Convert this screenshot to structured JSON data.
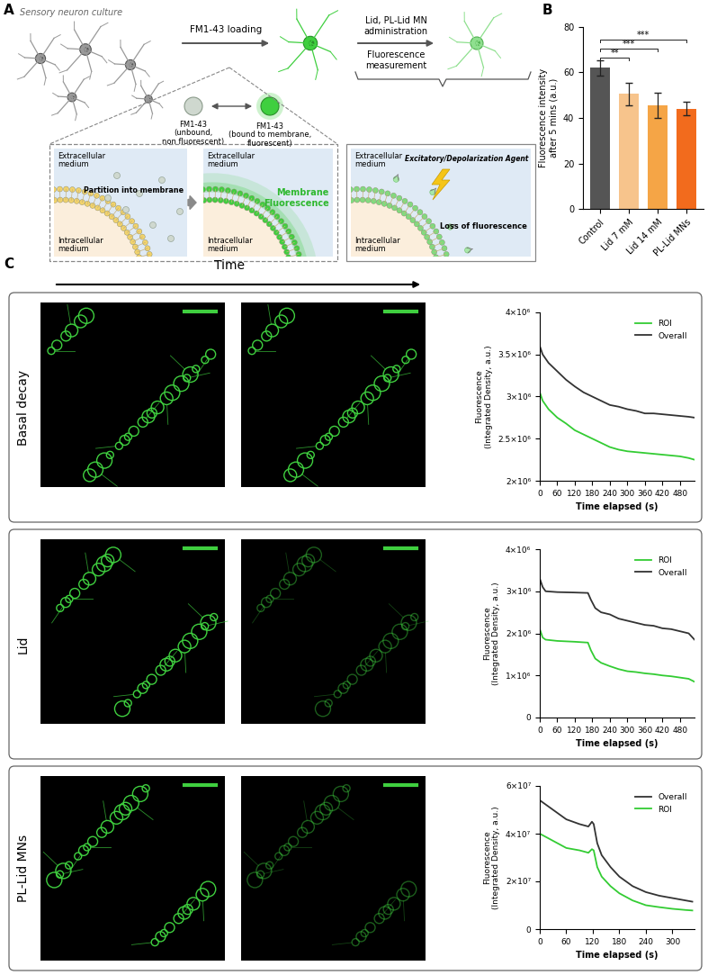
{
  "diagram": {
    "panel_labels": [
      "A",
      "B",
      "C"
    ],
    "panel_a": {
      "culture": "Sensory neuron culture",
      "step1": "FM1-43 loading",
      "step2": "Lid, PL-Lid MN\nadministration",
      "step3": "Fluorescence\nmeasurement",
      "unbound": "FM1-43\n(unbound,\nnon fluorescent)",
      "bound": "FM1-43\n(bound to membrane,\nfluorescent)",
      "extracellular": "Extracellular\nmedium",
      "intracellular": "Intracellular\nmedium",
      "partition": "Partition into membrane",
      "membrane_fluorescence": "Membrane\nFluorescence",
      "agent": "Excitatory/Depolarization Agent",
      "loss": "Loss of fluorescence"
    },
    "panel_c": {
      "time": "Time"
    }
  },
  "chart_data": [
    {
      "type": "bar",
      "ylabel": "Fluorescence intensity\nafter 5 mins (a.u.)",
      "categories": [
        "Control",
        "Lid 7 mM",
        "Lid 14 mM",
        "PL-Lid MNs"
      ],
      "values": [
        62,
        50.5,
        45.5,
        44
      ],
      "errors": [
        3.5,
        5,
        5.5,
        3
      ],
      "colors": [
        "#555555",
        "#f7c48c",
        "#f5a546",
        "#f26b1d"
      ],
      "ylim": [
        0,
        80
      ],
      "yticks": [
        0,
        20,
        40,
        60,
        80
      ],
      "annotations": [
        {
          "from": "Control",
          "to": "Lid 7 mM",
          "text": "**"
        },
        {
          "from": "Control",
          "to": "Lid 14 mM",
          "text": "***"
        },
        {
          "from": "Control",
          "to": "PL-Lid MNs",
          "text": "***"
        }
      ]
    },
    {
      "type": "line",
      "title": "Basal decay",
      "xlabel": "Time elapsed (s)",
      "ylabel": "Fluorescence\n(Integrated Density, a.u.)",
      "xlim": [
        0,
        530
      ],
      "xticks": [
        0,
        60,
        120,
        180,
        240,
        300,
        360,
        420,
        480
      ],
      "ylim": [
        2000000,
        4000000
      ],
      "yticks": [
        {
          "value": 2000000,
          "label": "2×10⁶"
        },
        {
          "value": 2500000,
          "label": "2.5×10⁶"
        },
        {
          "value": 3000000,
          "label": "3×10⁶"
        },
        {
          "value": 3500000,
          "label": "3.5×10⁶"
        },
        {
          "value": 4000000,
          "label": "4×10⁶"
        }
      ],
      "legend": "upper right",
      "x": [
        0,
        10,
        30,
        60,
        90,
        120,
        150,
        180,
        210,
        240,
        270,
        300,
        330,
        360,
        390,
        420,
        450,
        480,
        510,
        530
      ],
      "series": [
        {
          "name": "ROI",
          "color": "#33cc33",
          "values": [
            3050000,
            2950000,
            2850000,
            2750000,
            2680000,
            2600000,
            2550000,
            2500000,
            2450000,
            2400000,
            2370000,
            2350000,
            2340000,
            2330000,
            2320000,
            2310000,
            2300000,
            2290000,
            2270000,
            2250000
          ]
        },
        {
          "name": "Overall",
          "color": "#333333",
          "values": [
            3600000,
            3500000,
            3400000,
            3300000,
            3200000,
            3120000,
            3050000,
            3000000,
            2950000,
            2900000,
            2880000,
            2850000,
            2830000,
            2800000,
            2800000,
            2790000,
            2780000,
            2770000,
            2760000,
            2750000
          ]
        }
      ]
    },
    {
      "type": "line",
      "title": "Lid",
      "xlabel": "Time elapsed (s)",
      "ylabel": "Fluorescence\n(Integrated Density, a.u.)",
      "xlim": [
        0,
        530
      ],
      "xticks": [
        0,
        60,
        120,
        180,
        240,
        300,
        360,
        420,
        480
      ],
      "ylim": [
        0,
        4000000
      ],
      "yticks": [
        0,
        {
          "value": 1000000,
          "label": "1×10⁶"
        },
        {
          "value": 2000000,
          "label": "2×10⁶"
        },
        {
          "value": 3000000,
          "label": "3×10⁶"
        },
        {
          "value": 4000000,
          "label": "4×10⁶"
        }
      ],
      "legend": "upper right",
      "x": [
        0,
        10,
        20,
        60,
        120,
        165,
        175,
        190,
        210,
        240,
        270,
        300,
        330,
        360,
        390,
        420,
        450,
        480,
        510,
        530
      ],
      "series": [
        {
          "name": "ROI",
          "color": "#33cc33",
          "values": [
            2100000,
            1900000,
            1850000,
            1820000,
            1800000,
            1780000,
            1600000,
            1400000,
            1300000,
            1220000,
            1150000,
            1100000,
            1080000,
            1050000,
            1030000,
            1000000,
            980000,
            950000,
            920000,
            850000
          ]
        },
        {
          "name": "Overall",
          "color": "#333333",
          "values": [
            3300000,
            3100000,
            3000000,
            2980000,
            2970000,
            2960000,
            2800000,
            2600000,
            2500000,
            2450000,
            2350000,
            2300000,
            2250000,
            2200000,
            2180000,
            2120000,
            2100000,
            2050000,
            2000000,
            1850000
          ]
        }
      ]
    },
    {
      "type": "line",
      "title": "PL-Lid MNs",
      "xlabel": "Time elapsed (s)",
      "ylabel": "Fluorescence\n(Integrated Density, a.u.)",
      "xlim": [
        0,
        350
      ],
      "xticks": [
        0,
        60,
        120,
        180,
        240,
        300
      ],
      "ylim": [
        0,
        60000000
      ],
      "yticks": [
        0,
        {
          "value": 20000000,
          "label": "2×10⁷"
        },
        {
          "value": 40000000,
          "label": "4×10⁷"
        },
        {
          "value": 60000000,
          "label": "6×10⁷"
        }
      ],
      "legend": "upper right",
      "x": [
        0,
        15,
        30,
        60,
        90,
        110,
        118,
        122,
        130,
        140,
        160,
        180,
        210,
        240,
        270,
        300,
        330,
        345
      ],
      "series": [
        {
          "name": "Overall",
          "color": "#333333",
          "values": [
            54000000,
            52000000,
            50000000,
            46000000,
            44000000,
            43000000,
            45000000,
            44000000,
            36000000,
            31000000,
            26000000,
            22000000,
            18000000,
            15500000,
            14000000,
            13000000,
            12000000,
            11500000
          ]
        },
        {
          "name": "ROI",
          "color": "#33cc33",
          "values": [
            40000000,
            38500000,
            37000000,
            34000000,
            33000000,
            32000000,
            33500000,
            33000000,
            26000000,
            22000000,
            18000000,
            15000000,
            12000000,
            10000000,
            9200000,
            8500000,
            8000000,
            7800000
          ]
        }
      ]
    }
  ]
}
